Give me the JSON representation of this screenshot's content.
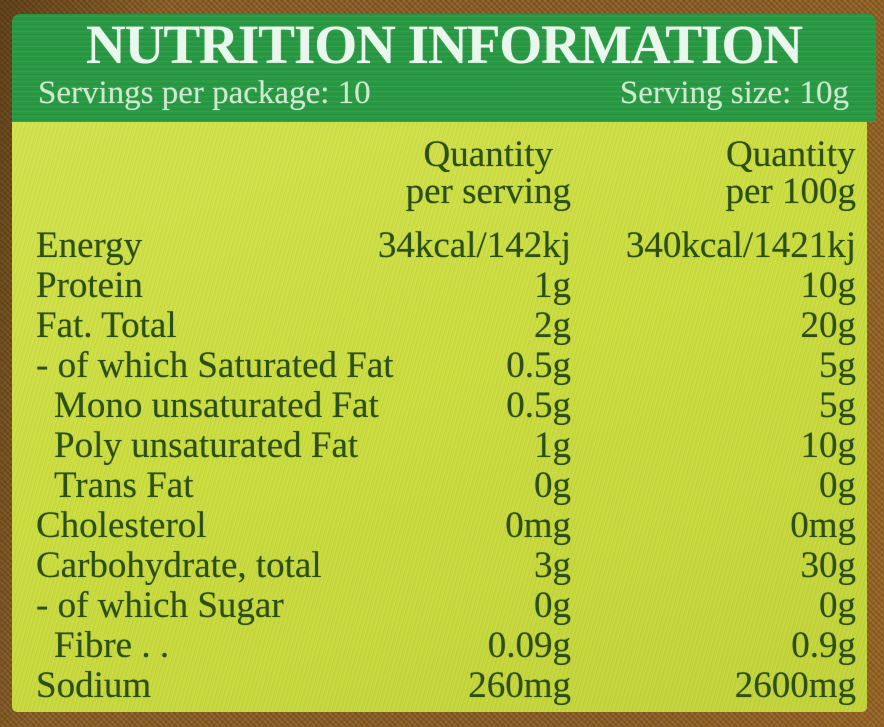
{
  "label": {
    "title": "NUTRITION INFORMATION",
    "servings_per_package": "Servings per package: 10",
    "serving_size": "Serving size: 10g"
  },
  "table": {
    "columns": [
      {
        "line1": "Quantity",
        "line2": "per serving"
      },
      {
        "line1": "Quantity",
        "line2": "per 100g"
      }
    ],
    "rows": [
      {
        "label": "Energy",
        "per_serving": "34kcal/142kj",
        "per_100g": "340kcal/1421kj"
      },
      {
        "label": "Protein",
        "per_serving": "1g",
        "per_100g": "10g"
      },
      {
        "label": "Fat. Total",
        "per_serving": "2g",
        "per_100g": "20g"
      },
      {
        "label": "- of which Saturated Fat",
        "per_serving": "0.5g",
        "per_100g": "5g"
      },
      {
        "label": "Mono unsaturated Fat",
        "per_serving": "0.5g",
        "per_100g": "5g"
      },
      {
        "label": "Poly unsaturated Fat",
        "per_serving": "1g",
        "per_100g": "10g"
      },
      {
        "label": "Trans Fat",
        "per_serving": "0g",
        "per_100g": "0g"
      },
      {
        "label": "Cholesterol",
        "per_serving": "0mg",
        "per_100g": "0mg"
      },
      {
        "label": "Carbohydrate, total",
        "per_serving": "3g",
        "per_100g": "30g"
      },
      {
        "label": "- of which Sugar",
        "per_serving": "0g",
        "per_100g": "0g"
      },
      {
        "label": "Fibre . .",
        "per_serving": "0.09g",
        "per_100g": "0.9g"
      },
      {
        "label": "Sodium",
        "per_serving": "260mg",
        "per_100g": "2600mg"
      }
    ]
  },
  "colors": {
    "background_brown": "#8b5e26",
    "band_green": "#279943",
    "title_text": "#eaf7ec",
    "subheader_text": "#cdeacf",
    "panel_yellow": "#cadc3c",
    "table_text": "#2b4f14"
  }
}
